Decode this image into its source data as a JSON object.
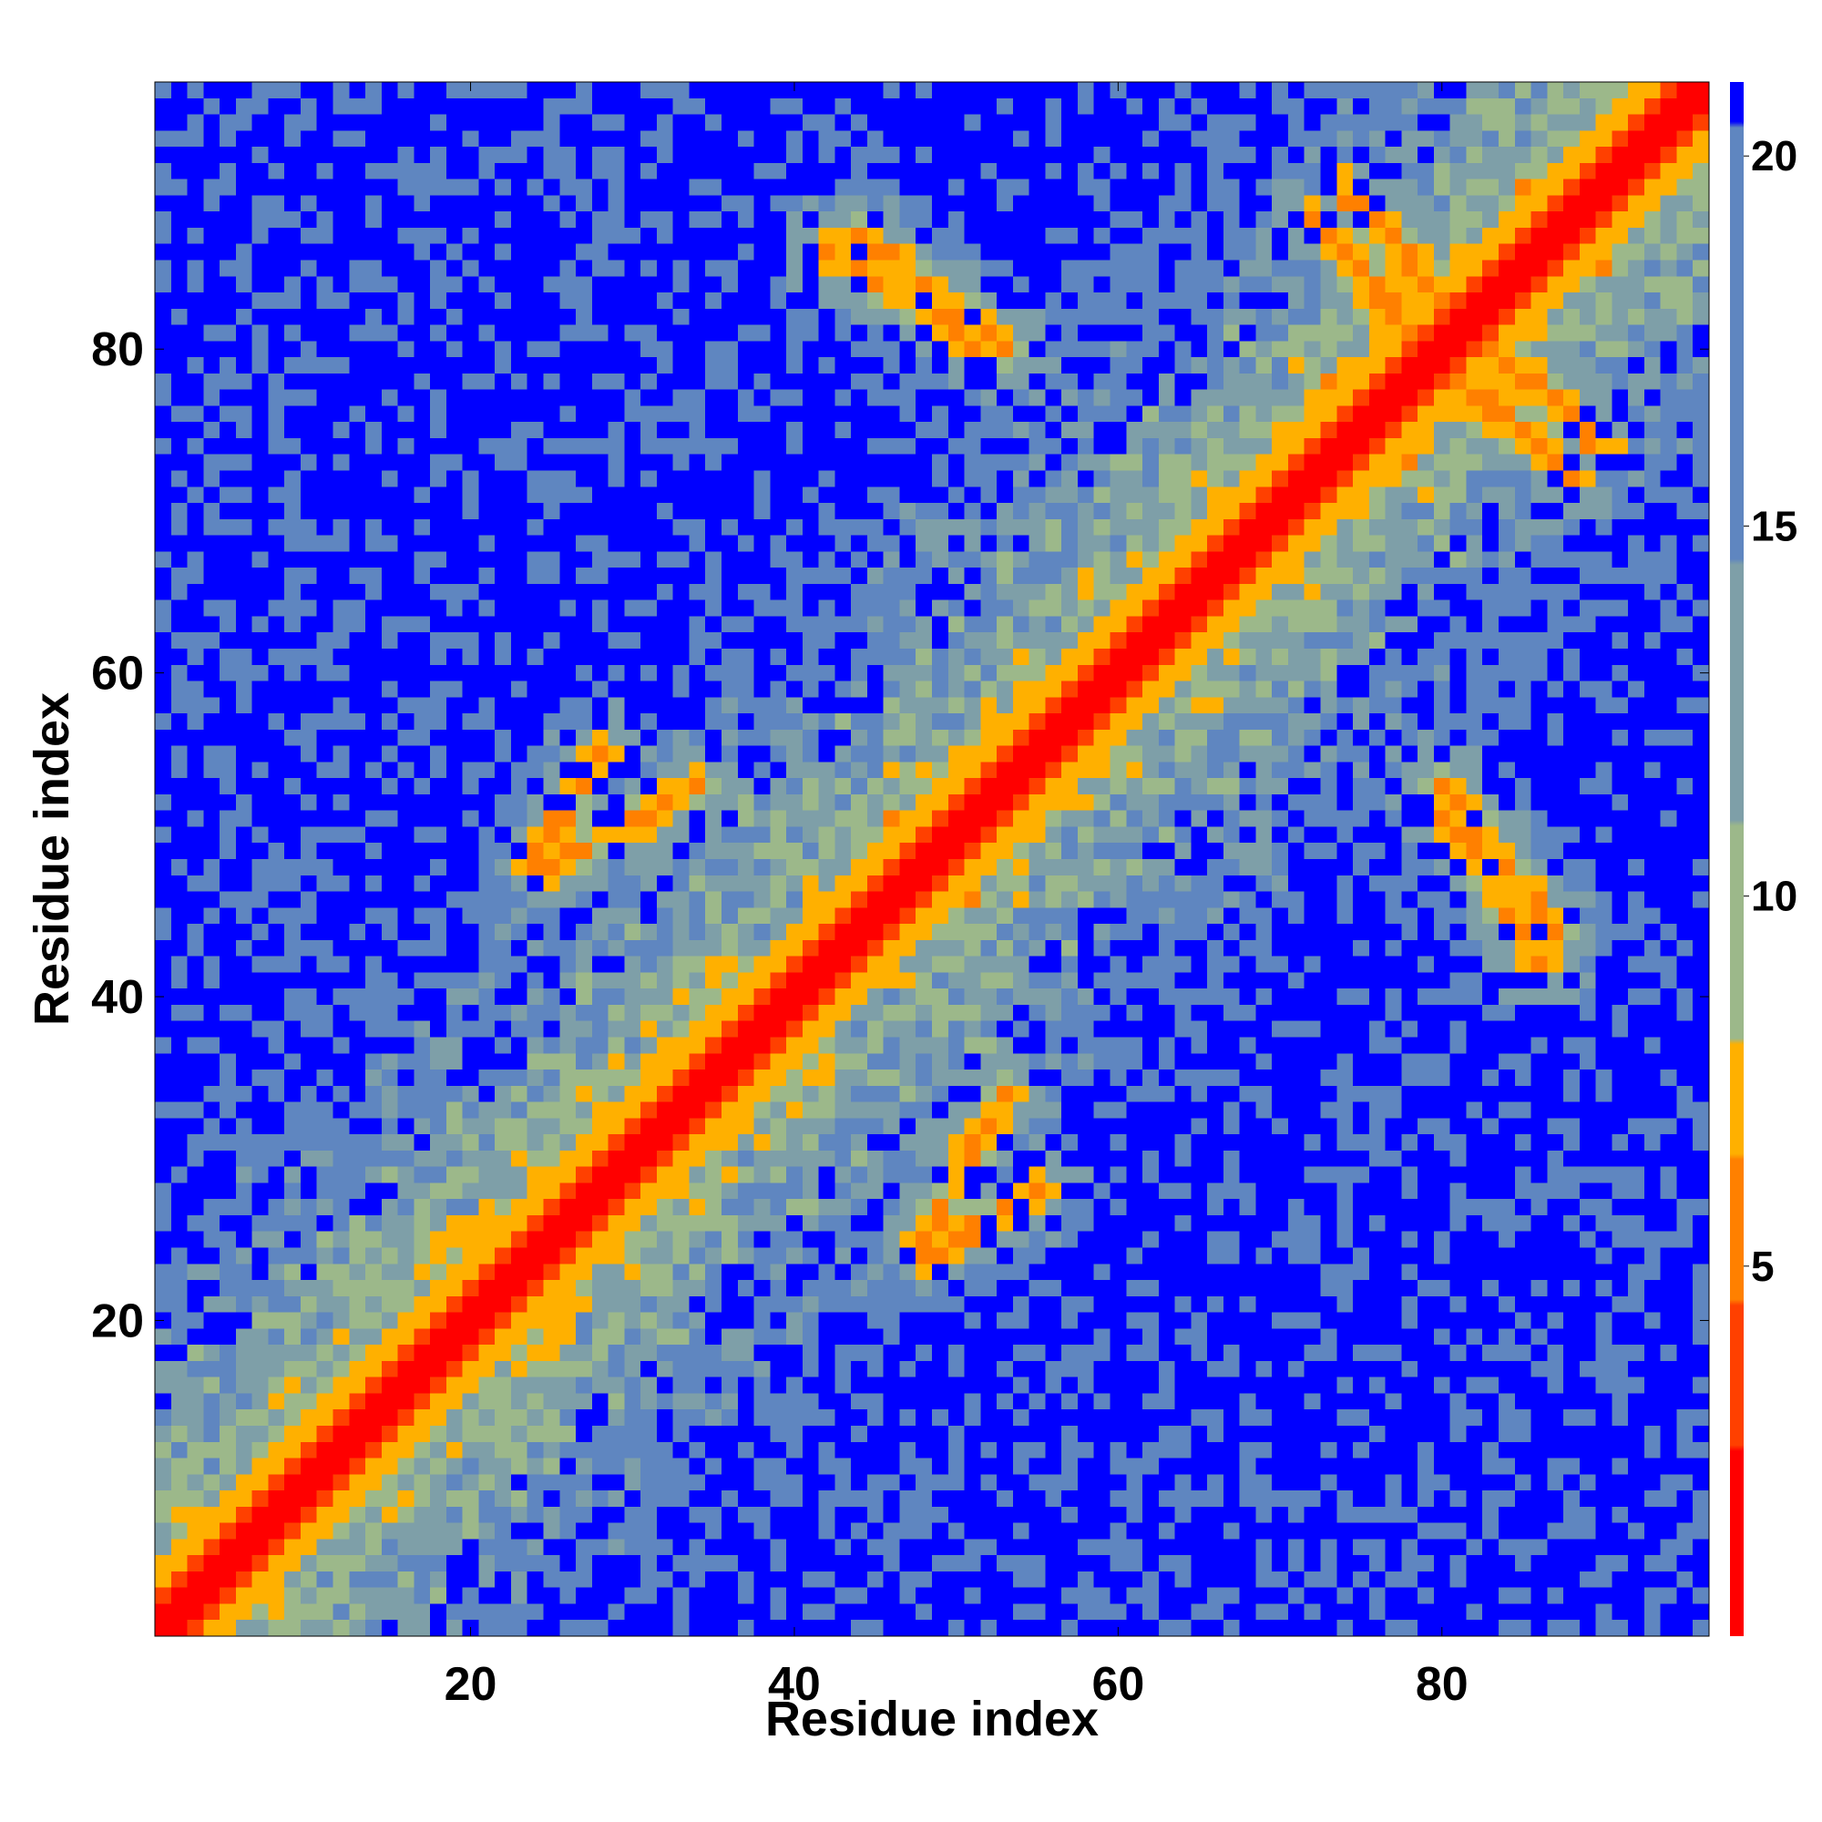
{
  "chart_data": {
    "type": "heatmap",
    "description_units": "residue-residue distance",
    "xlabel": "Residue index",
    "ylabel": "Residue index",
    "n_residues": 96,
    "xlim": [
      1,
      96
    ],
    "ylim": [
      1,
      96
    ],
    "x_ticks": [
      20,
      40,
      60,
      80
    ],
    "y_ticks": [
      20,
      40,
      60,
      80
    ],
    "colorbar": {
      "ticks": [
        5,
        10,
        15,
        20
      ],
      "range": [
        0,
        21
      ],
      "colors": [
        "#ff0000",
        "#ff4000",
        "#ff8000",
        "#ffb000",
        "#9cb88a",
        "#7e9fa8",
        "#5f86c0",
        "#0000ff"
      ]
    },
    "structure": {
      "diagonal_width": 3,
      "contact_bands": [
        {
          "x_from": 48,
          "y_from": 25,
          "x_to": 53,
          "y_to": 34,
          "kind": "antiparallel"
        },
        {
          "x_from": 28,
          "y_from": 55,
          "x_to": 24,
          "y_to": 48,
          "kind": "antiparallel"
        },
        {
          "x_from": 76,
          "y_from": 87,
          "x_to": 90,
          "y_to": 74,
          "kind": "antiparallel"
        },
        {
          "x_from": 72,
          "y_from": 88,
          "x_to": 83,
          "y_to": 76,
          "kind": "antiparallel"
        },
        {
          "x_from": 80,
          "y_from": 52,
          "x_to": 86,
          "y_to": 42,
          "kind": "antiparallel"
        },
        {
          "x_from": 44,
          "y_from": 87,
          "x_to": 53,
          "y_to": 80,
          "kind": "antiparallel"
        }
      ]
    }
  }
}
